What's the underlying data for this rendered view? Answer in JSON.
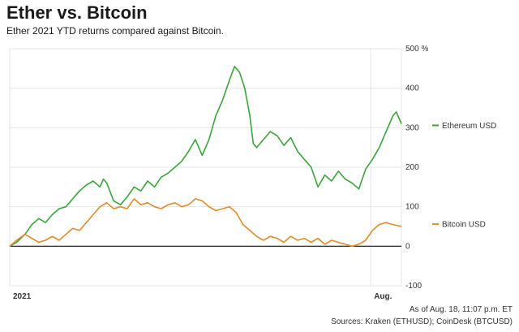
{
  "header": {
    "title": "Ether vs. Bitcoin",
    "subtitle": "Ether 2021 YTD returns compared against Bitcoin."
  },
  "footer": {
    "note": "As of Aug. 18, 11:07 p.m. ET",
    "sources": "Sources: Kraken (ETHUSD); CoinDesk (BTCUSD)"
  },
  "chart_data": {
    "type": "line",
    "title": "Ether vs. Bitcoin",
    "subtitle": "Ether 2021 YTD returns compared against Bitcoin.",
    "x_unit": "day of 2021",
    "x_ticks": [
      {
        "x": 1,
        "label": "2021"
      },
      {
        "x": 213,
        "label": "Aug."
      }
    ],
    "xlim": [
      1,
      231
    ],
    "ylim": [
      -100,
      500
    ],
    "y_ticks": [
      {
        "y": 500,
        "label": "500 %"
      },
      {
        "y": 400,
        "label": "400"
      },
      {
        "y": 300,
        "label": "300"
      },
      {
        "y": 200,
        "label": "200"
      },
      {
        "y": 100,
        "label": "100"
      },
      {
        "y": 0,
        "label": "0"
      },
      {
        "y": -100,
        "label": "-100"
      }
    ],
    "grid": true,
    "legend": "right, next to line ends",
    "series": [
      {
        "name": "Ethereum USD",
        "color": "#3aa53a",
        "points": [
          [
            1,
            0
          ],
          [
            5,
            10
          ],
          [
            10,
            30
          ],
          [
            14,
            55
          ],
          [
            18,
            70
          ],
          [
            22,
            60
          ],
          [
            26,
            80
          ],
          [
            30,
            95
          ],
          [
            34,
            100
          ],
          [
            38,
            120
          ],
          [
            42,
            140
          ],
          [
            46,
            155
          ],
          [
            50,
            165
          ],
          [
            54,
            150
          ],
          [
            56,
            170
          ],
          [
            58,
            160
          ],
          [
            62,
            115
          ],
          [
            66,
            105
          ],
          [
            70,
            125
          ],
          [
            74,
            150
          ],
          [
            78,
            140
          ],
          [
            82,
            165
          ],
          [
            86,
            150
          ],
          [
            90,
            175
          ],
          [
            94,
            185
          ],
          [
            98,
            200
          ],
          [
            102,
            215
          ],
          [
            106,
            240
          ],
          [
            110,
            270
          ],
          [
            114,
            230
          ],
          [
            118,
            270
          ],
          [
            122,
            330
          ],
          [
            126,
            370
          ],
          [
            130,
            420
          ],
          [
            133,
            455
          ],
          [
            136,
            440
          ],
          [
            139,
            400
          ],
          [
            142,
            330
          ],
          [
            144,
            260
          ],
          [
            146,
            250
          ],
          [
            150,
            270
          ],
          [
            154,
            290
          ],
          [
            158,
            280
          ],
          [
            162,
            255
          ],
          [
            166,
            275
          ],
          [
            170,
            240
          ],
          [
            174,
            220
          ],
          [
            178,
            200
          ],
          [
            182,
            150
          ],
          [
            186,
            180
          ],
          [
            190,
            165
          ],
          [
            194,
            190
          ],
          [
            198,
            170
          ],
          [
            202,
            160
          ],
          [
            206,
            145
          ],
          [
            210,
            195
          ],
          [
            214,
            220
          ],
          [
            218,
            250
          ],
          [
            222,
            290
          ],
          [
            226,
            330
          ],
          [
            228,
            340
          ],
          [
            231,
            310
          ]
        ]
      },
      {
        "name": "Bitcoin USD",
        "color": "#e08b2c",
        "points": [
          [
            1,
            0
          ],
          [
            5,
            15
          ],
          [
            10,
            30
          ],
          [
            14,
            20
          ],
          [
            18,
            10
          ],
          [
            22,
            15
          ],
          [
            26,
            25
          ],
          [
            30,
            15
          ],
          [
            34,
            30
          ],
          [
            38,
            45
          ],
          [
            42,
            40
          ],
          [
            46,
            60
          ],
          [
            50,
            80
          ],
          [
            54,
            100
          ],
          [
            58,
            110
          ],
          [
            62,
            95
          ],
          [
            66,
            100
          ],
          [
            70,
            95
          ],
          [
            74,
            120
          ],
          [
            78,
            105
          ],
          [
            82,
            110
          ],
          [
            86,
            100
          ],
          [
            90,
            95
          ],
          [
            94,
            105
          ],
          [
            98,
            110
          ],
          [
            102,
            100
          ],
          [
            106,
            105
          ],
          [
            110,
            120
          ],
          [
            114,
            115
          ],
          [
            118,
            100
          ],
          [
            122,
            90
          ],
          [
            126,
            95
          ],
          [
            130,
            100
          ],
          [
            134,
            85
          ],
          [
            138,
            55
          ],
          [
            142,
            40
          ],
          [
            146,
            25
          ],
          [
            150,
            15
          ],
          [
            154,
            25
          ],
          [
            158,
            20
          ],
          [
            162,
            10
          ],
          [
            166,
            25
          ],
          [
            170,
            15
          ],
          [
            174,
            20
          ],
          [
            178,
            10
          ],
          [
            182,
            20
          ],
          [
            186,
            5
          ],
          [
            190,
            15
          ],
          [
            194,
            10
          ],
          [
            198,
            5
          ],
          [
            202,
            0
          ],
          [
            206,
            5
          ],
          [
            210,
            15
          ],
          [
            214,
            40
          ],
          [
            218,
            55
          ],
          [
            222,
            60
          ],
          [
            226,
            55
          ],
          [
            231,
            50
          ]
        ]
      }
    ],
    "reference_line": {
      "y": 0,
      "color": "#111111"
    }
  },
  "colors": {
    "grid": "#e4e4e4",
    "zero_line": "#111111",
    "ethereum": "#3aa53a",
    "bitcoin": "#e08b2c"
  }
}
